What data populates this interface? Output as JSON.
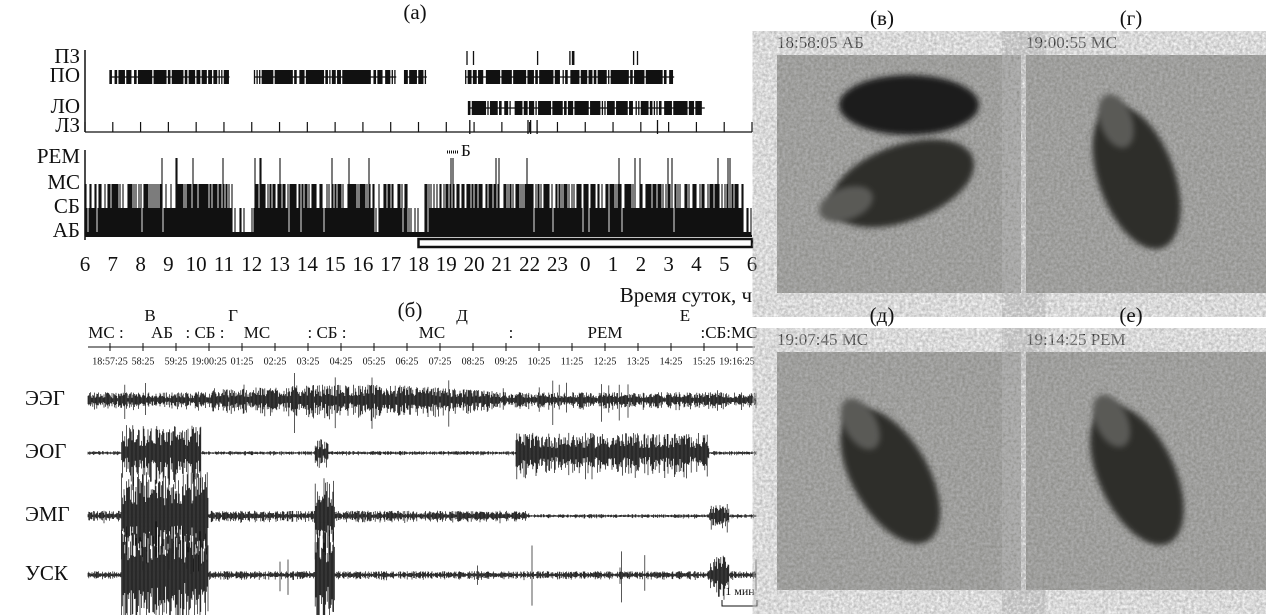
{
  "panel_a": {
    "label": "(а)",
    "event_rows": [
      "ПЗ",
      "ПО",
      "ЛО",
      "ЛЗ"
    ],
    "stage_rows": [
      "РЕМ",
      "МС",
      "СБ",
      "АБ"
    ],
    "marker": "Б",
    "hour_labels": [
      "6",
      "7",
      "8",
      "9",
      "10",
      "11",
      "12",
      "13",
      "14",
      "15",
      "16",
      "17",
      "18",
      "19",
      "20",
      "21",
      "22",
      "23",
      "0",
      "1",
      "2",
      "3",
      "4",
      "5",
      "6"
    ],
    "axis_label": "Время суток, ч"
  },
  "panel_b": {
    "label": "(б)",
    "frame_letters": [
      "В",
      "Г",
      "Д",
      "Е"
    ],
    "stage_labels": [
      "МС :",
      "АБ",
      ": СБ :",
      "МС",
      ": СБ :",
      "МС",
      ":",
      "РЕМ",
      ":СБ:МС"
    ],
    "time_ticks": [
      "18:57:25",
      "58:25",
      "59:25",
      "19:00:25",
      "01:25",
      "02:25",
      "03:25",
      "04:25",
      "05:25",
      "06:25",
      "07:25",
      "08:25",
      "09:25",
      "10:25",
      "11:25",
      "12:25",
      "13:25",
      "14:25",
      "15:25",
      "19:16:25"
    ],
    "traces": [
      "ЭЭГ",
      "ЭОГ",
      "ЭМГ",
      "УСК"
    ],
    "scale": "1 мин"
  },
  "photos": [
    {
      "label": "(в)",
      "caption": "18:58:05 АБ"
    },
    {
      "label": "(г)",
      "caption": "19:00:55 МС"
    },
    {
      "label": "(д)",
      "caption": "19:07:45 МС"
    },
    {
      "label": "(е)",
      "caption": "19:14:25 РЕМ"
    }
  ]
}
